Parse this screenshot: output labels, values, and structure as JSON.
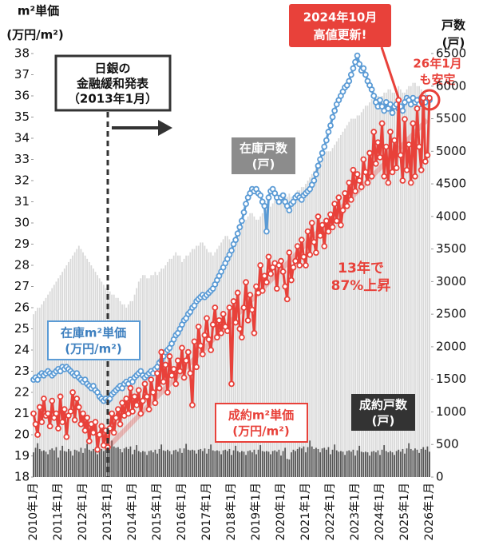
{
  "chart_data": {
    "type": "combo",
    "left_axis_title": [
      "m²単価",
      "(万円/m²)"
    ],
    "right_axis_title": [
      "戸数",
      "(戸)"
    ],
    "categories": [
      "2010年1月",
      null,
      null,
      null,
      null,
      null,
      null,
      null,
      null,
      null,
      null,
      null,
      "2011年1月",
      null,
      null,
      null,
      null,
      null,
      null,
      null,
      null,
      null,
      null,
      null,
      "2012年1月",
      null,
      null,
      null,
      null,
      null,
      null,
      null,
      null,
      null,
      null,
      null,
      "2013年1月",
      null,
      null,
      null,
      null,
      null,
      null,
      null,
      null,
      null,
      null,
      null,
      "2014年1月",
      null,
      null,
      null,
      null,
      null,
      null,
      null,
      null,
      null,
      null,
      null,
      "2015年1月",
      null,
      null,
      null,
      null,
      null,
      null,
      null,
      null,
      null,
      null,
      null,
      "2016年1月",
      null,
      null,
      null,
      null,
      null,
      null,
      null,
      null,
      null,
      null,
      null,
      "2017年1月",
      null,
      null,
      null,
      null,
      null,
      null,
      null,
      null,
      null,
      null,
      null,
      "2018年1月",
      null,
      null,
      null,
      null,
      null,
      null,
      null,
      null,
      null,
      null,
      null,
      "2019年1月",
      null,
      null,
      null,
      null,
      null,
      null,
      null,
      null,
      null,
      null,
      null,
      "2020年1月",
      null,
      null,
      null,
      null,
      null,
      null,
      null,
      null,
      null,
      null,
      null,
      "2021年1月",
      null,
      null,
      null,
      null,
      null,
      null,
      null,
      null,
      null,
      null,
      null,
      "2022年1月",
      null,
      null,
      null,
      null,
      null,
      null,
      null,
      null,
      null,
      null,
      null,
      "2023年1月",
      null,
      null,
      null,
      null,
      null,
      null,
      null,
      null,
      null,
      null,
      null,
      "2024年1月",
      null,
      null,
      null,
      null,
      null,
      null,
      null,
      null,
      null,
      null,
      null,
      "2025年1月",
      null,
      null,
      null,
      null,
      null,
      null,
      null,
      null,
      null,
      null,
      null,
      "2026年1月"
    ],
    "ylim": [
      18,
      38
    ],
    "yticks": [
      18,
      19,
      20,
      21,
      22,
      23,
      24,
      25,
      26,
      27,
      28,
      29,
      30,
      31,
      32,
      33,
      34,
      35,
      36,
      37,
      38
    ],
    "y2lim": [
      0,
      6500
    ],
    "y2ticks": [
      0,
      500,
      1000,
      1500,
      2000,
      2500,
      3000,
      3500,
      4000,
      4500,
      5000,
      5500,
      6000,
      6500
    ],
    "series": [
      {
        "name": "在庫戸数",
        "unit": "(戸)",
        "type": "bar",
        "axis": "y2",
        "color": "#d9d9d9",
        "values": [
          2500,
          2550,
          2600,
          2600,
          2650,
          2700,
          2750,
          2800,
          2850,
          2900,
          2950,
          3000,
          3050,
          3100,
          3150,
          3200,
          3250,
          3300,
          3350,
          3400,
          3450,
          3500,
          3550,
          3500,
          3450,
          3400,
          3350,
          3300,
          3250,
          3200,
          3150,
          3100,
          3050,
          3000,
          2950,
          2900,
          2900,
          2850,
          2800,
          2800,
          2750,
          2750,
          2700,
          2650,
          2650,
          2600,
          2650,
          2700,
          2700,
          2800,
          2900,
          3000,
          3050,
          3100,
          3100,
          3050,
          3050,
          3100,
          3100,
          3150,
          3100,
          3150,
          3200,
          3200,
          3250,
          3300,
          3350,
          3350,
          3400,
          3450,
          3400,
          3400,
          3300,
          3350,
          3400,
          3400,
          3450,
          3500,
          3500,
          3550,
          3550,
          3600,
          3600,
          3550,
          3500,
          3450,
          3450,
          3400,
          3450,
          3500,
          3550,
          3600,
          3650,
          3700,
          3700,
          3650,
          3600,
          3650,
          3700,
          3750,
          3800,
          3850,
          3900,
          3950,
          4000,
          4050,
          4050,
          4000,
          3950,
          3950,
          4000,
          4050,
          4050,
          4100,
          4150,
          4150,
          4200,
          4250,
          4250,
          4200,
          4200,
          4250,
          4300,
          4300,
          4350,
          4300,
          4300,
          4350,
          4400,
          4400,
          4450,
          4450,
          4500,
          4550,
          4600,
          4650,
          4700,
          4750,
          4800,
          4850,
          4900,
          4950,
          5000,
          5000,
          5000,
          5050,
          5100,
          5150,
          5200,
          5250,
          5300,
          5350,
          5400,
          5450,
          5500,
          5500,
          5500,
          5550,
          5550,
          5600,
          5650,
          5700,
          5700,
          5750,
          5800,
          5800,
          5850,
          5850,
          5800,
          5850,
          5900,
          5900,
          5950,
          5950,
          5900,
          5900,
          5950,
          6000,
          5950,
          5900,
          5900,
          5950,
          6000,
          6000,
          6050,
          6050,
          6000,
          6000,
          5950,
          5900,
          5900,
          5850,
          5850
        ]
      },
      {
        "name": "成約戸数",
        "unit": "(戸)",
        "type": "bar",
        "axis": "y2",
        "color": "#555555",
        "values": [
          380,
          450,
          520,
          430,
          400,
          410,
          390,
          350,
          420,
          440,
          410,
          460,
          300,
          410,
          480,
          400,
          390,
          430,
          400,
          330,
          420,
          410,
          390,
          450,
          370,
          440,
          510,
          420,
          400,
          430,
          410,
          350,
          420,
          430,
          400,
          460,
          380,
          470,
          560,
          470,
          450,
          460,
          430,
          380,
          440,
          460,
          430,
          470,
          350,
          420,
          490,
          400,
          380,
          400,
          390,
          340,
          400,
          410,
          380,
          420,
          360,
          430,
          500,
          410,
          400,
          420,
          400,
          350,
          410,
          420,
          390,
          440,
          370,
          440,
          510,
          420,
          410,
          420,
          410,
          360,
          420,
          430,
          400,
          440,
          360,
          430,
          500,
          410,
          400,
          410,
          400,
          350,
          410,
          420,
          400,
          430,
          340,
          410,
          480,
          400,
          380,
          400,
          390,
          340,
          400,
          410,
          380,
          420,
          350,
          420,
          490,
          400,
          390,
          400,
          390,
          350,
          400,
          410,
          390,
          420,
          330,
          400,
          450,
          280,
          270,
          380,
          420,
          400,
          430,
          460,
          440,
          470,
          380,
          460,
          560,
          470,
          430,
          450,
          430,
          380,
          440,
          450,
          420,
          460,
          350,
          420,
          500,
          410,
          390,
          400,
          390,
          340,
          400,
          410,
          390,
          420,
          330,
          410,
          480,
          390,
          380,
          390,
          380,
          330,
          390,
          400,
          380,
          410,
          340,
          420,
          490,
          400,
          380,
          400,
          380,
          340,
          400,
          420,
          390,
          430,
          360,
          440,
          520,
          430,
          410,
          440,
          420,
          370,
          430,
          460,
          420,
          470,
          390
        ]
      },
      {
        "name": "在庫m²単価",
        "unit": "(万円/m²)",
        "type": "line",
        "color": "#5b9bd5",
        "values": [
          22.6,
          22.7,
          22.6,
          22.8,
          22.9,
          22.8,
          22.9,
          23.0,
          22.9,
          22.8,
          22.9,
          23.0,
          23.1,
          23.0,
          23.2,
          23.1,
          23.2,
          23.1,
          23.0,
          22.9,
          22.8,
          22.9,
          22.7,
          22.6,
          22.5,
          22.6,
          22.4,
          22.3,
          22.2,
          22.3,
          22.1,
          22.0,
          21.8,
          21.7,
          21.6,
          21.7,
          21.6,
          21.7,
          21.9,
          22.0,
          22.1,
          22.2,
          22.3,
          22.2,
          22.4,
          22.5,
          22.4,
          22.6,
          22.5,
          22.7,
          22.8,
          22.9,
          23.0,
          22.8,
          22.7,
          22.8,
          22.9,
          23.0,
          22.9,
          23.1,
          23.2,
          23.4,
          23.5,
          23.7,
          23.9,
          24.0,
          24.1,
          24.3,
          24.5,
          24.7,
          24.8,
          25.0,
          25.2,
          25.4,
          25.5,
          25.7,
          25.8,
          26.0,
          26.1,
          26.3,
          26.4,
          26.5,
          26.6,
          26.5,
          26.6,
          26.7,
          26.8,
          26.9,
          27.1,
          27.3,
          27.5,
          27.7,
          27.9,
          28.1,
          28.3,
          28.5,
          28.7,
          29.0,
          29.2,
          29.5,
          29.8,
          30.1,
          30.5,
          30.9,
          31.2,
          31.4,
          31.6,
          31.5,
          31.6,
          31.4,
          31.3,
          31.0,
          30.8,
          29.6,
          31.2,
          31.5,
          31.6,
          31.4,
          31.2,
          31.0,
          31.2,
          31.3,
          31.0,
          30.8,
          30.6,
          30.9,
          31.0,
          31.2,
          31.3,
          31.2,
          31.1,
          31.3,
          31.4,
          31.5,
          31.6,
          31.8,
          32.0,
          32.3,
          32.7,
          33.0,
          33.3,
          33.6,
          33.9,
          34.3,
          34.6,
          35.0,
          35.3,
          35.6,
          35.8,
          36.0,
          36.2,
          36.4,
          36.5,
          36.7,
          37.0,
          37.3,
          37.6,
          37.9,
          37.5,
          37.2,
          37.3,
          37.0,
          36.7,
          36.5,
          36.3,
          36.0,
          35.7,
          35.5,
          35.8,
          35.5,
          35.3,
          35.7,
          35.4,
          35.6,
          35.2,
          35.5,
          35.6,
          35.4,
          35.5,
          35.3,
          35.7,
          35.9,
          35.8,
          35.6,
          35.9,
          35.7,
          35.8,
          35.6,
          35.9,
          35.8,
          35.7,
          35.9,
          35.8
        ]
      },
      {
        "name": "成約m²単価",
        "unit": "(万円/m²)",
        "type": "line",
        "color": "#e8413a",
        "values": [
          21.0,
          20.5,
          20.0,
          21.3,
          20.6,
          21.7,
          20.9,
          21.0,
          20.4,
          21.6,
          20.8,
          21.0,
          20.3,
          21.8,
          20.6,
          21.2,
          19.9,
          20.9,
          21.1,
          22.0,
          20.7,
          21.7,
          21.3,
          20.5,
          21.0,
          20.2,
          20.8,
          19.7,
          20.5,
          20.1,
          20.6,
          19.3,
          20.0,
          20.4,
          19.5,
          20.2,
          19.4,
          20.3,
          21.0,
          20.1,
          20.8,
          21.2,
          20.5,
          21.5,
          20.9,
          21.7,
          21.0,
          22.2,
          21.1,
          21.8,
          21.4,
          22.1,
          21.0,
          21.6,
          22.4,
          21.8,
          21.2,
          22.6,
          22.0,
          21.5,
          22.9,
          22.2,
          23.9,
          22.5,
          23.3,
          22.0,
          23.7,
          22.8,
          23.1,
          22.4,
          23.5,
          23.0,
          24.1,
          22.7,
          23.5,
          23.9,
          22.9,
          21.4,
          24.4,
          23.2,
          25.1,
          24.2,
          23.8,
          24.7,
          25.5,
          24.5,
          24.0,
          25.2,
          26.0,
          24.6,
          25.4,
          24.8,
          25.7,
          25.1,
          24.9,
          26.0,
          22.4,
          26.3,
          25.3,
          26.7,
          25.0,
          24.6,
          26.0,
          27.2,
          25.4,
          26.6,
          25.9,
          24.8,
          27.0,
          26.7,
          28.0,
          26.8,
          27.5,
          27.2,
          28.4,
          27.6,
          27.9,
          28.1,
          26.9,
          28.0,
          28.2,
          27.7,
          27.0,
          26.4,
          28.6,
          27.3,
          27.9,
          28.2,
          28.9,
          28.0,
          29.2,
          28.4,
          28.0,
          29.6,
          28.5,
          30.0,
          29.1,
          28.6,
          30.3,
          29.4,
          29.9,
          28.9,
          30.1,
          29.6,
          30.4,
          29.8,
          30.9,
          30.1,
          31.2,
          29.9,
          30.6,
          31.4,
          30.8,
          31.9,
          31.1,
          32.5,
          31.5,
          32.3,
          32.0,
          31.7,
          33.0,
          32.4,
          31.9,
          33.3,
          32.2,
          34.3,
          32.8,
          33.8,
          33.1,
          34.7,
          32.2,
          33.6,
          31.9,
          34.3,
          32.4,
          33.9,
          32.6,
          35.8,
          33.2,
          32.0,
          34.9,
          32.5,
          33.7,
          31.9,
          34.7,
          32.2,
          35.4,
          33.6,
          32.5,
          35.9,
          32.9,
          33.2,
          35.9
        ]
      }
    ],
    "boj_note": [
      "日銀の",
      "金融緩和発表",
      "（2013年1月）"
    ],
    "peak_note": [
      "2024年10月",
      "高値更新!"
    ],
    "latest_note": [
      "26年1月",
      "も安定"
    ],
    "growth_note": [
      "13年で",
      "87%上昇"
    ]
  }
}
